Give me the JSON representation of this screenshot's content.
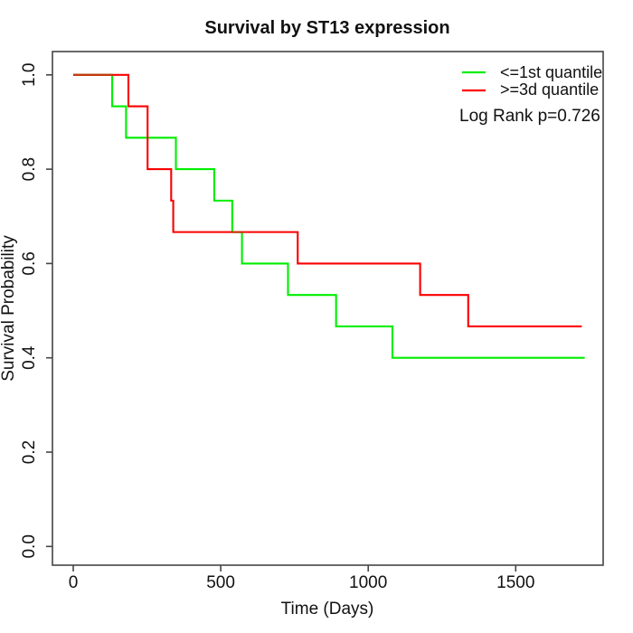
{
  "chart_data": {
    "type": "line",
    "subtype": "kaplan-meier-step",
    "title": "Survival by ST13 expression",
    "xlabel": "Time (Days)",
    "ylabel": "Survival Probability",
    "xlim": [
      0,
      1800
    ],
    "ylim": [
      0.0,
      1.0
    ],
    "x_ticks": [
      0,
      500,
      1000,
      1500
    ],
    "x_tick_labels": [
      "0",
      "500",
      "1000",
      "1500"
    ],
    "y_ticks": [
      0.0,
      0.2,
      0.4,
      0.6,
      0.8,
      1.0
    ],
    "y_tick_labels": [
      "0.0",
      "0.2",
      "0.4",
      "0.6",
      "0.8",
      "1.0"
    ],
    "grid": false,
    "legend_position": "top-right-inside",
    "series": [
      {
        "name": "<=1st quantile",
        "color": "#00ee00",
        "start": [
          0,
          1.0
        ],
        "events": [
          [
            132,
            0.9333
          ],
          [
            179,
            0.8667
          ],
          [
            348,
            0.8
          ],
          [
            478,
            0.7333
          ],
          [
            539,
            0.6667
          ],
          [
            572,
            0.6
          ],
          [
            728,
            0.5333
          ],
          [
            891,
            0.4667
          ],
          [
            1082,
            0.4
          ]
        ],
        "end_time": 1734,
        "end_value": 0.4
      },
      {
        "name": ">=3d quantile",
        "color": "#fb0000",
        "start": [
          0,
          1.0
        ],
        "events": [
          [
            187,
            0.9333
          ],
          [
            252,
            0.8
          ],
          [
            332,
            0.7333
          ],
          [
            339,
            0.6667
          ],
          [
            761,
            0.6
          ],
          [
            1176,
            0.5333
          ],
          [
            1339,
            0.4667
          ]
        ],
        "end_time": 1724,
        "end_value": 0.4667
      }
    ],
    "overlap_segments": [
      {
        "value": 1.0,
        "t1": 0,
        "t2": 132,
        "color": "#c03b10"
      },
      {
        "value": 0.6667,
        "t1": 539,
        "t2": 572,
        "color": "#c03b10"
      }
    ],
    "legend": [
      {
        "label": "<=1st quantile",
        "color": "#00ee00"
      },
      {
        "label": ">=3d quantile",
        "color": "#fb0000"
      }
    ],
    "annotation": "Log Rank p=0.726"
  }
}
